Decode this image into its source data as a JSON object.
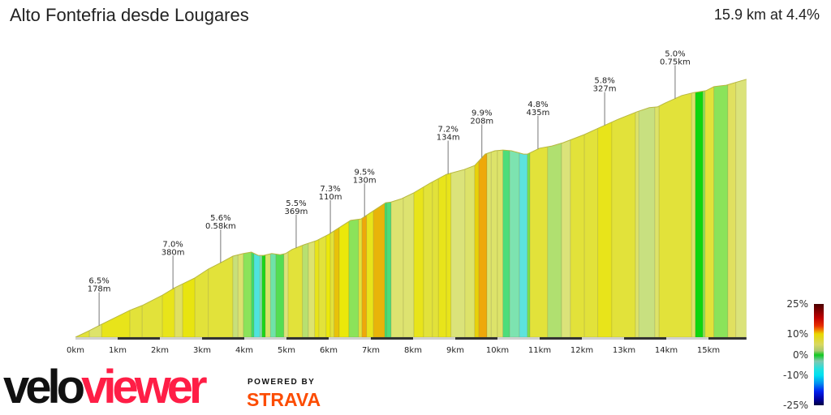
{
  "header": {
    "title": "Alto Fontefria desde Lougares",
    "summary": "15.9 km at 4.4%"
  },
  "chart_data": {
    "type": "area",
    "title": "Alto Fontefria desde Lougares",
    "xlabel": "",
    "ylabel": "",
    "xlim": [
      0,
      15.9
    ],
    "x_ticks": [
      "0km",
      "1km",
      "2km",
      "3km",
      "4km",
      "5km",
      "6km",
      "7km",
      "8km",
      "9km",
      "10km",
      "11km",
      "12km",
      "13km",
      "14km",
      "15km"
    ],
    "profile": {
      "km": [
        0,
        0.33,
        0.62,
        1.29,
        1.58,
        2.06,
        2.35,
        2.83,
        3.15,
        3.44,
        3.73,
        3.98,
        4.17,
        4.33,
        4.46,
        4.65,
        4.85,
        4.98,
        5.13,
        5.42,
        5.71,
        6.0,
        6.19,
        6.52,
        6.77,
        7.06,
        7.35,
        7.48,
        7.73,
        8.02,
        8.4,
        8.79,
        9.21,
        9.46,
        9.71,
        9.94,
        10.13,
        10.33,
        10.62,
        10.71,
        11.0,
        11.29,
        11.56,
        12.06,
        12.44,
        12.83,
        13.31,
        13.6,
        13.79,
        13.98,
        14.37,
        14.65,
        14.94,
        15.13,
        15.42,
        15.9
      ],
      "gain_m": [
        0,
        18,
        35,
        73,
        86,
        114,
        134,
        161,
        185,
        202,
        220,
        227,
        231,
        222,
        222,
        227,
        224,
        227,
        238,
        251,
        262,
        279,
        293,
        317,
        321,
        343,
        365,
        367,
        376,
        392,
        418,
        442,
        455,
        466,
        497,
        506,
        508,
        506,
        497,
        497,
        513,
        519,
        528,
        550,
        570,
        590,
        612,
        623,
        625,
        636,
        656,
        664,
        669,
        680,
        684,
        700
      ]
    },
    "grade_bands": {
      "end_km": [
        0.33,
        0.62,
        1.29,
        1.58,
        2.06,
        2.35,
        2.54,
        2.83,
        3.15,
        3.73,
        3.85,
        3.98,
        4.17,
        4.23,
        4.37,
        4.42,
        4.5,
        4.62,
        4.75,
        4.94,
        5.04,
        5.38,
        5.52,
        5.67,
        5.77,
        5.94,
        6.04,
        6.13,
        6.25,
        6.48,
        6.71,
        6.79,
        6.9,
        7.06,
        7.33,
        7.38,
        7.48,
        7.77,
        8.02,
        8.25,
        8.46,
        8.6,
        8.79,
        8.9,
        9.23,
        9.46,
        9.56,
        9.75,
        9.85,
        10.0,
        10.13,
        10.29,
        10.52,
        10.71,
        10.77,
        11.19,
        11.52,
        11.73,
        12.06,
        12.38,
        12.71,
        13.27,
        13.35,
        13.73,
        13.83,
        14.6,
        14.69,
        14.87,
        14.92,
        15.13,
        15.46,
        15.65,
        15.9
      ],
      "colors": [
        "#e2e23a",
        "#dde36a",
        "#e8e41a",
        "#e2e23a",
        "#e2e23a",
        "#e8e41a",
        "#e0e060",
        "#e8e410",
        "#e2e23a",
        "#e2e23a",
        "#c8e07a",
        "#dbe370",
        "#8be35a",
        "#3ddc6a",
        "#4fe3dd",
        "#7de3b0",
        "#1bd61b",
        "#d8e46a",
        "#6fe3a8",
        "#52dd52",
        "#dbe37a",
        "#e2e23a",
        "#b8e070",
        "#dde370",
        "#e8e41a",
        "#e2e23a",
        "#ebe80a",
        "#e2e23a",
        "#e8c20a",
        "#ebe80a",
        "#8be35a",
        "#e2e23a",
        "#eea80a",
        "#e8e41a",
        "#e8b40a",
        "#3ddc6a",
        "#4ddd7a",
        "#dde370",
        "#dde370",
        "#e8e41a",
        "#e2e23a",
        "#e2e23a",
        "#e8e41a",
        "#e8e41a",
        "#dbe37a",
        "#dde36a",
        "#e8d10a",
        "#eea80a",
        "#dde36a",
        "#dde36a",
        "#dde36a",
        "#4ddd7a",
        "#7de3b0",
        "#5ce3dd",
        "#7be04a",
        "#e2e23a",
        "#b0e070",
        "#dbe37a",
        "#e2e23a",
        "#e2e23a",
        "#e8e41a",
        "#e2e23a",
        "#dde36a",
        "#c8e080",
        "#dde36a",
        "#e2e23a",
        "#dde36a",
        "#0ed60e",
        "#8be35a",
        "#e2e23a",
        "#8be35a",
        "#e0e060",
        "#dbe37a"
      ]
    },
    "annotations": [
      {
        "km": 0.56,
        "grade": "6.5%",
        "length": "178m"
      },
      {
        "km": 2.31,
        "grade": "7.0%",
        "length": "380m"
      },
      {
        "km": 3.44,
        "grade": "5.6%",
        "length": "0.58km"
      },
      {
        "km": 5.23,
        "grade": "5.5%",
        "length": "369m"
      },
      {
        "km": 6.04,
        "grade": "7.3%",
        "length": "110m"
      },
      {
        "km": 6.85,
        "grade": "9.5%",
        "length": "130m"
      },
      {
        "km": 8.83,
        "grade": "7.2%",
        "length": "134m"
      },
      {
        "km": 9.63,
        "grade": "9.9%",
        "length": "208m"
      },
      {
        "km": 10.96,
        "grade": "4.8%",
        "length": "435m"
      },
      {
        "km": 12.54,
        "grade": "5.8%",
        "length": "327m"
      },
      {
        "km": 14.21,
        "grade": "5.0%",
        "length": "0.75km"
      }
    ],
    "legend": {
      "labels": [
        "25%",
        "10%",
        "0%",
        "-10%",
        "-25%"
      ],
      "values": [
        25,
        10,
        0,
        -10,
        -25
      ],
      "gradient": [
        [
          25,
          "#4a0000"
        ],
        [
          18,
          "#c00000"
        ],
        [
          14,
          "#e83000"
        ],
        [
          12,
          "#f08000"
        ],
        [
          10,
          "#e8d800"
        ],
        [
          5,
          "#d8d860"
        ],
        [
          2,
          "#a8c870"
        ],
        [
          0,
          "#10c820"
        ],
        [
          -3,
          "#80c8b0"
        ],
        [
          -7,
          "#20e0e0"
        ],
        [
          -10,
          "#00e0f0"
        ],
        [
          -14,
          "#0090f0"
        ],
        [
          -18,
          "#0020f0"
        ],
        [
          -22,
          "#0000a0"
        ],
        [
          -25,
          "#000040"
        ]
      ]
    }
  },
  "branding": {
    "velo": "velo",
    "viewer": "viewer",
    "powered_by": "POWERED BY",
    "strava": "STRAVA"
  }
}
